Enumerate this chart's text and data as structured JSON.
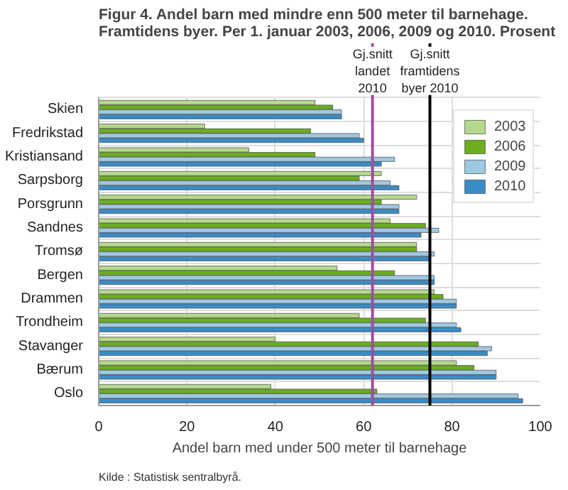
{
  "chart_data": {
    "type": "bar",
    "orientation": "horizontal",
    "title": "Figur 4. Andel barn med mindre enn 500 meter til barnehage. Framtidens byer. Per 1. januar 2003, 2006, 2009 og 2010. Prosent",
    "xlabel": "Andel barn med under 500 meter til barnehage",
    "categories": [
      "Skien",
      "Fredrikstad",
      "Kristiansand",
      "Sarpsborg",
      "Porsgrunn",
      "Sandnes",
      "Tromsø",
      "Bergen",
      "Drammen",
      "Trondheim",
      "Stavanger",
      "Bærum",
      "Oslo"
    ],
    "series": [
      {
        "name": "2003",
        "color": "#b5d98c",
        "values": [
          49,
          24,
          34,
          64,
          72,
          66,
          72,
          54,
          76,
          59,
          40,
          81,
          39
        ]
      },
      {
        "name": "2006",
        "color": "#6aae1e",
        "values": [
          53,
          48,
          49,
          59,
          64,
          74,
          72,
          67,
          78,
          74,
          86,
          85,
          63
        ]
      },
      {
        "name": "2009",
        "color": "#9ec9e2",
        "values": [
          55,
          59,
          67,
          66,
          68,
          77,
          76,
          76,
          81,
          81,
          89,
          90,
          95
        ]
      },
      {
        "name": "2010",
        "color": "#3a8cc4",
        "values": [
          55,
          60,
          64,
          68,
          68,
          73,
          75,
          76,
          81,
          82,
          88,
          90,
          96
        ]
      }
    ],
    "xlim": [
      0,
      100
    ],
    "xticks": [
      0,
      20,
      40,
      60,
      80,
      100
    ],
    "ref_lines": [
      {
        "axis": "x",
        "value": 62,
        "label": "Gj.snitt\nlandet\n2010",
        "color": "#9b4f9e"
      },
      {
        "axis": "x",
        "value": 75,
        "label": "Gj.snitt\nframtidens\nbyer 2010",
        "color": "#000000"
      }
    ],
    "annotations": [
      "Kilde : Statistisk sentralbyrå."
    ],
    "grid": "x",
    "legend": "top right"
  }
}
